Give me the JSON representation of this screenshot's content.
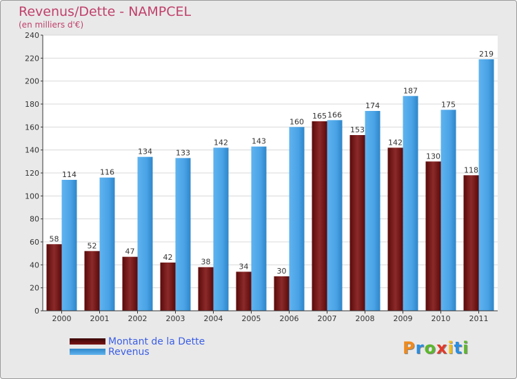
{
  "header": {
    "title": "Revenus/Dette - NAMPCEL",
    "subtitle": "(en milliers d'€)"
  },
  "colors": {
    "dette": "#7a1515",
    "revenus": "#4aa3e6",
    "title": "#c0406b"
  },
  "chart_data": {
    "type": "bar",
    "title": "Revenus/Dette - NAMPCEL",
    "ylabel": "(en milliers d'€)",
    "xlabel": "",
    "ylim": [
      0,
      240
    ],
    "yticks": [
      0,
      20,
      40,
      60,
      80,
      100,
      120,
      140,
      160,
      180,
      200,
      220,
      240
    ],
    "grid": true,
    "legend_position": "bottom-left",
    "categories": [
      "2000",
      "2001",
      "2002",
      "2003",
      "2004",
      "2005",
      "2006",
      "2007",
      "2008",
      "2009",
      "2010",
      "2011"
    ],
    "series": [
      {
        "name": "Montant de la Dette",
        "values": [
          58,
          52,
          47,
          42,
          38,
          34,
          30,
          165,
          153,
          142,
          130,
          118
        ]
      },
      {
        "name": "Revenus",
        "values": [
          114,
          116,
          134,
          133,
          142,
          143,
          160,
          166,
          174,
          187,
          175,
          219
        ]
      }
    ]
  },
  "logo": {
    "letters": [
      "P",
      "r",
      "o",
      "x",
      "i",
      "t",
      "i"
    ]
  }
}
